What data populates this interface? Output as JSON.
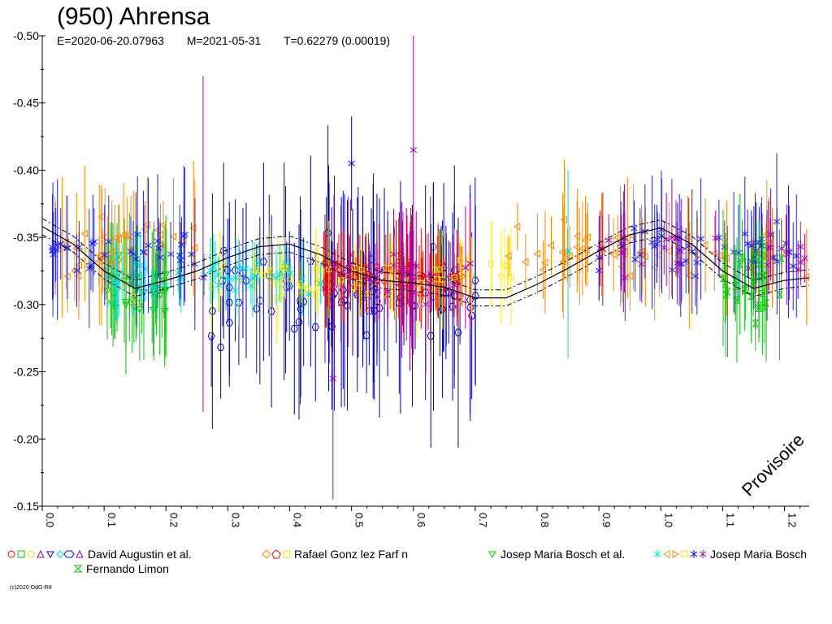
{
  "chart_data": {
    "type": "scatter",
    "title": "(950) Ahrensa",
    "subtitle": {
      "epoch": "E=2020-06-20.07963",
      "modified": "M=2021-05-31",
      "period": "T=0.62279 (0.00019)"
    },
    "watermark": "Provisoire",
    "copyright": "(c)2020 OdG-R8",
    "y_axis": {
      "ticks": [
        "-0.50",
        "-0.45",
        "-0.40",
        "-0.35",
        "-0.30",
        "-0.25",
        "-0.20",
        "-0.15"
      ],
      "range": [
        -0.5,
        -0.15
      ],
      "inverted": true
    },
    "x_axis": {
      "ticks": [
        "0.0",
        "0.1",
        "0.2",
        "0.3",
        "0.4",
        "0.5",
        "0.6",
        "0.7",
        "0.8",
        "0.9",
        "1.0",
        "1.1",
        "1.2"
      ],
      "range": [
        0.0,
        1.24
      ],
      "tick_label_rotation": 90
    },
    "fit_curve": {
      "x": [
        0.0,
        0.05,
        0.1,
        0.15,
        0.2,
        0.25,
        0.3,
        0.35,
        0.4,
        0.45,
        0.5,
        0.55,
        0.6,
        0.65,
        0.7,
        0.75,
        0.8,
        0.85,
        0.9,
        0.95,
        1.0,
        1.05,
        1.1,
        1.15,
        1.2,
        1.24
      ],
      "y": [
        -0.358,
        -0.345,
        -0.325,
        -0.312,
        -0.318,
        -0.325,
        -0.335,
        -0.343,
        -0.345,
        -0.337,
        -0.325,
        -0.318,
        -0.316,
        -0.313,
        -0.305,
        -0.305,
        -0.315,
        -0.327,
        -0.34,
        -0.352,
        -0.357,
        -0.345,
        -0.325,
        -0.312,
        -0.318,
        -0.32
      ],
      "band": 0.006
    },
    "legend": [
      {
        "label": "David Augustin et al.",
        "color": "#ff0000",
        "symbol_colors": [
          "#ff0000",
          "#00cc00",
          "#ffff00",
          "#aa00aa",
          "#0000ff",
          "#00dddd",
          "#0000ff",
          "#aa00aa"
        ]
      },
      {
        "label": "Rafael Gonz lez Farf n",
        "color": "#ff8800",
        "symbol_colors": [
          "#ff8800",
          "#ff0000",
          "#ffff00"
        ]
      },
      {
        "label": "Josep Maria Bosch et al.",
        "color": "#00cc00",
        "symbol_colors": [
          "#00cc00"
        ]
      },
      {
        "label": "Josep Maria Bosch",
        "color": "#0000ff",
        "symbol_colors": [
          "#00dddd",
          "#ff8800",
          "#ff8800",
          "#ffff00",
          "#0000ff",
          "#aa00aa",
          "#aa00aa"
        ]
      },
      {
        "label": "Fernando Limon",
        "color": "#00cc00",
        "symbol_colors": [
          "#00cc00"
        ]
      }
    ],
    "series": [
      {
        "name": "David Augustin et al.",
        "color": "#0000cc",
        "symbol": "hexagon",
        "x_range": [
          0.27,
          0.72
        ],
        "y_center": -0.31,
        "scatter": 0.05,
        "err": 0.06,
        "count": 90
      },
      {
        "name": "Rafael Gonz lez Farf n",
        "color": "#ff0000",
        "symbol": "diamond",
        "x_range": [
          0.45,
          0.68
        ],
        "y_center": -0.322,
        "scatter": 0.018,
        "err": 0.025,
        "count": 80
      },
      {
        "name": "Rafael Gonz lez Farf n",
        "color": "#ffee00",
        "symbol": "square",
        "x_range": [
          0.26,
          0.78
        ],
        "y_center": -0.322,
        "scatter": 0.02,
        "err": 0.025,
        "count": 60
      },
      {
        "name": "Josep Maria Bosch et al.",
        "color": "#00cc00",
        "symbol": "triangle-down",
        "x_range": [
          0.1,
          0.2
        ],
        "y_center": -0.31,
        "scatter": 0.035,
        "err": 0.035,
        "count": 40
      },
      {
        "name": "Josep Maria Bosch",
        "color": "#00dddd",
        "symbol": "star",
        "x_range": [
          0.1,
          0.45
        ],
        "y_center": -0.322,
        "scatter": 0.02,
        "err": 0.02,
        "count": 45
      },
      {
        "name": "Josep Maria Bosch",
        "color": "#ff8800",
        "symbol": "triangle-left",
        "x_range": [
          0.0,
          0.25
        ],
        "y_center": -0.34,
        "scatter": 0.035,
        "err": 0.035,
        "count": 35
      },
      {
        "name": "Josep Maria Bosch",
        "color": "#ff8800",
        "symbol": "triangle-left",
        "x_range": [
          0.75,
          1.24
        ],
        "y_center": -0.34,
        "scatter": 0.03,
        "err": 0.03,
        "count": 55
      },
      {
        "name": "Josep Maria Bosch",
        "color": "#2222ee",
        "symbol": "star",
        "x_range": [
          0.0,
          0.25
        ],
        "y_center": -0.337,
        "scatter": 0.025,
        "err": 0.035,
        "count": 35
      },
      {
        "name": "Josep Maria Bosch",
        "color": "#2222ee",
        "symbol": "star",
        "x_range": [
          0.9,
          1.24
        ],
        "y_center": -0.34,
        "scatter": 0.028,
        "err": 0.035,
        "count": 50
      },
      {
        "name": "Josep Maria Bosch",
        "color": "#aa00aa",
        "symbol": "star",
        "x_range": [
          0.45,
          0.7
        ],
        "y_center": -0.32,
        "scatter": 0.03,
        "err": 0.04,
        "count": 30
      },
      {
        "name": "Josep Maria Bosch",
        "color": "#aa00aa",
        "symbol": "star",
        "x_range": [
          0.9,
          1.24
        ],
        "y_center": -0.34,
        "scatter": 0.025,
        "err": 0.03,
        "count": 25
      },
      {
        "name": "Fernando Limon",
        "color": "#00cc00",
        "symbol": "hourglass",
        "x_range": [
          1.1,
          1.2
        ],
        "y_center": -0.31,
        "scatter": 0.035,
        "err": 0.035,
        "count": 25
      }
    ],
    "outliers": [
      {
        "x": 0.26,
        "y": -0.32,
        "err_hi": -0.47,
        "err_lo": -0.22,
        "color": "#aa00aa"
      },
      {
        "x": 0.47,
        "y": -0.245,
        "err_hi": -0.33,
        "err_lo": -0.155,
        "color": "#aa00aa"
      },
      {
        "x": 0.6,
        "y": -0.415,
        "err_hi": -0.5,
        "err_lo": -0.33,
        "color": "#aa00aa"
      },
      {
        "x": 0.85,
        "y": -0.34,
        "err_hi": -0.4,
        "err_lo": -0.26,
        "color": "#00dddd"
      },
      {
        "x": 0.5,
        "y": -0.405,
        "err_hi": -0.44,
        "err_lo": -0.37,
        "color": "#0000cc"
      }
    ]
  }
}
